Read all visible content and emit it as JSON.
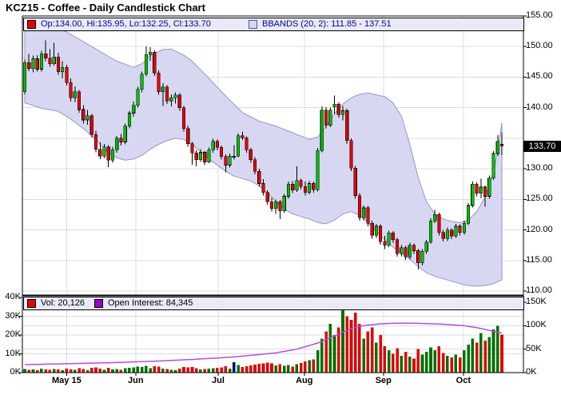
{
  "title": "KCZ15 - Coffee - Daily Candlestick Chart",
  "main_legend": {
    "ohlc_label": "Op:134.00, Hi:135.95, Lo:132.25, Cl:133.70",
    "bbands_label": "BBANDS (20, 2): 111.85 - 137.51"
  },
  "volume_legend": {
    "vol_label": "Vol: 20,126",
    "oi_label": "Open Interest: 84,345"
  },
  "last_price_label": "133.70",
  "colors": {
    "candle_up": "#00C000",
    "candle_down": "#E60000",
    "candle_flat": "#000080",
    "candle_outline": "#000000",
    "bb_fill": "#D7D7F2",
    "bb_edge": "#9595CC",
    "vol_up": "#007000",
    "vol_down": "#E00000",
    "vol_flat": "#000080",
    "oi_line": "#B24FE0",
    "legend_bg": "#E9E9F8",
    "legend_text_main": "#000099",
    "grid": "#DCDCDC",
    "badge_bg": "#000000",
    "badge_fg": "#FFFFFF",
    "oi_swatch": "#9900CC",
    "vol_swatch": "#E60000",
    "ohlc_swatch": "#E60000"
  },
  "chart_data": {
    "type": "candlestick",
    "title": "KCZ15 - Coffee - Daily Candlestick Chart",
    "price_axis": {
      "side": "right",
      "min": 109.3,
      "max": 155.0,
      "tick_labels": [
        {
          "label": "155.00",
          "value": 155
        },
        {
          "label": "150.00",
          "value": 150
        },
        {
          "label": "145.00",
          "value": 145
        },
        {
          "label": "140.00",
          "value": 140
        },
        {
          "label": "130.00",
          "value": 130
        },
        {
          "label": "125.00",
          "value": 125
        },
        {
          "label": "120.00",
          "value": 120
        },
        {
          "label": "115.00",
          "value": 115
        },
        {
          "label": "110.00",
          "value": 110
        }
      ],
      "gridline_values": [
        150,
        145,
        140,
        135,
        130,
        125,
        120,
        115,
        110
      ],
      "last_price": 133.7
    },
    "volume_axis_left": {
      "tick_labels": [
        {
          "label": "40K",
          "value": 40
        },
        {
          "label": "30K",
          "value": 30
        },
        {
          "label": "20K",
          "value": 20
        },
        {
          "label": "10K",
          "value": 10
        },
        {
          "label": "0K",
          "value": 0
        }
      ]
    },
    "volume_axis_right": {
      "tick_labels": [
        {
          "label": "150K",
          "value": 150
        },
        {
          "label": "100K",
          "value": 100
        },
        {
          "label": "50K",
          "value": 50
        },
        {
          "label": "0K",
          "value": 0
        }
      ]
    },
    "month_ticks": [
      {
        "label": "May 15",
        "index": 10
      },
      {
        "label": "Jun",
        "index": 26.5
      },
      {
        "label": "Jul",
        "index": 46.2
      },
      {
        "label": "Aug",
        "index": 66.8
      },
      {
        "label": "Sep",
        "index": 85.7
      },
      {
        "label": "Oct",
        "index": 104.8
      }
    ],
    "candles_format": [
      "open",
      "high",
      "low",
      "close",
      "volume_thousands"
    ],
    "candles": [
      [
        142.6,
        147.9,
        142.2,
        147.4,
        2.0
      ],
      [
        147.4,
        148.8,
        146.0,
        146.4,
        1.5
      ],
      [
        146.4,
        148.5,
        145.8,
        148.0,
        1.8
      ],
      [
        148.0,
        148.6,
        145.9,
        146.3,
        1.2
      ],
      [
        146.3,
        149.3,
        145.9,
        148.8,
        2.2
      ],
      [
        148.8,
        151.0,
        147.6,
        148.1,
        1.6
      ],
      [
        148.1,
        149.6,
        146.7,
        147.2,
        1.4
      ],
      [
        147.2,
        150.6,
        146.9,
        148.3,
        2.0
      ],
      [
        148.3,
        149.0,
        145.4,
        145.9,
        1.7
      ],
      [
        145.9,
        147.6,
        144.8,
        146.6,
        1.3
      ],
      [
        146.6,
        147.0,
        143.6,
        144.1,
        2.1
      ],
      [
        144.1,
        144.8,
        141.0,
        141.6,
        1.8
      ],
      [
        141.6,
        143.5,
        140.9,
        142.6,
        1.5
      ],
      [
        142.6,
        142.9,
        139.2,
        139.7,
        2.4
      ],
      [
        139.7,
        140.4,
        137.4,
        138.0,
        2.0
      ],
      [
        138.0,
        139.6,
        137.2,
        138.7,
        1.2
      ],
      [
        138.7,
        139.0,
        135.1,
        135.6,
        2.6
      ],
      [
        135.6,
        136.2,
        132.7,
        133.2,
        2.8
      ],
      [
        133.2,
        134.3,
        131.6,
        132.1,
        2.2
      ],
      [
        132.1,
        134.1,
        131.8,
        133.6,
        1.5
      ],
      [
        133.6,
        133.9,
        130.3,
        131.4,
        2.5
      ],
      [
        131.4,
        133.6,
        131.0,
        133.1,
        1.6
      ],
      [
        133.1,
        135.4,
        132.6,
        135.0,
        1.9
      ],
      [
        135.0,
        135.7,
        133.8,
        134.4,
        1.4
      ],
      [
        134.4,
        137.4,
        134.0,
        137.0,
        2.3
      ],
      [
        137.0,
        139.5,
        136.6,
        139.1,
        2.6
      ],
      [
        139.1,
        141.0,
        138.5,
        140.4,
        2.8
      ],
      [
        140.4,
        143.4,
        140.0,
        143.0,
        3.2
      ],
      [
        143.0,
        145.9,
        142.5,
        145.5,
        3.0
      ],
      [
        145.5,
        150.0,
        145.1,
        148.7,
        3.6
      ],
      [
        148.7,
        149.9,
        147.7,
        149.1,
        2.4
      ],
      [
        149.1,
        149.4,
        145.2,
        145.7,
        3.4
      ],
      [
        145.7,
        146.1,
        142.1,
        142.6,
        3.1
      ],
      [
        142.6,
        144.0,
        140.3,
        143.4,
        2.2
      ],
      [
        143.4,
        143.7,
        140.6,
        141.1,
        2.0
      ],
      [
        141.1,
        142.2,
        140.2,
        141.6,
        1.5
      ],
      [
        141.6,
        142.5,
        140.7,
        142.1,
        1.3
      ],
      [
        142.1,
        142.4,
        139.5,
        140.0,
        2.1
      ],
      [
        140.0,
        140.3,
        136.1,
        136.6,
        2.9
      ],
      [
        136.6,
        137.1,
        133.6,
        134.1,
        2.7
      ],
      [
        134.1,
        134.4,
        130.7,
        132.6,
        3.0
      ],
      [
        132.6,
        133.0,
        130.4,
        131.5,
        2.3
      ],
      [
        131.5,
        133.2,
        131.1,
        132.7,
        1.7
      ],
      [
        132.7,
        132.9,
        130.6,
        131.1,
        1.9
      ],
      [
        131.1,
        133.5,
        130.9,
        133.1,
        2.1
      ],
      [
        133.1,
        134.9,
        132.6,
        134.5,
        2.4
      ],
      [
        134.5,
        134.8,
        133.0,
        133.5,
        2.6
      ],
      [
        133.5,
        133.8,
        131.5,
        132.0,
        2.8
      ],
      [
        132.0,
        132.4,
        129.4,
        130.6,
        3.5
      ],
      [
        130.6,
        132.5,
        130.2,
        132.1,
        2.2
      ],
      [
        132.1,
        133.9,
        131.5,
        132.1,
        5.5
      ],
      [
        132.1,
        135.8,
        131.9,
        135.4,
        4.0
      ],
      [
        135.4,
        136.1,
        134.7,
        135.1,
        3.0
      ],
      [
        135.1,
        135.3,
        132.6,
        133.1,
        3.3
      ],
      [
        133.1,
        133.4,
        131.0,
        131.5,
        3.8
      ],
      [
        131.5,
        131.9,
        129.1,
        129.6,
        4.2
      ],
      [
        129.6,
        130.0,
        127.1,
        127.6,
        4.6
      ],
      [
        127.6,
        128.3,
        125.6,
        126.1,
        5.0
      ],
      [
        126.1,
        126.5,
        124.1,
        124.6,
        5.4
      ],
      [
        124.6,
        125.3,
        123.0,
        123.5,
        4.8
      ],
      [
        123.5,
        125.0,
        122.6,
        124.6,
        3.9
      ],
      [
        124.6,
        124.9,
        121.8,
        123.1,
        4.4
      ],
      [
        123.1,
        125.9,
        122.8,
        125.5,
        3.6
      ],
      [
        125.5,
        127.9,
        125.1,
        127.5,
        4.1
      ],
      [
        127.5,
        128.0,
        126.0,
        126.5,
        3.2
      ],
      [
        126.5,
        130.4,
        126.2,
        128.1,
        4.5
      ],
      [
        128.1,
        128.4,
        126.6,
        127.1,
        5.2
      ],
      [
        127.1,
        127.9,
        125.6,
        126.1,
        6.0
      ],
      [
        126.1,
        128.0,
        125.8,
        127.6,
        6.5
      ],
      [
        127.6,
        127.9,
        126.1,
        126.6,
        7.0
      ],
      [
        126.6,
        133.4,
        126.3,
        133.0,
        12.0
      ],
      [
        133.0,
        140.2,
        132.7,
        139.6,
        18.0
      ],
      [
        139.6,
        140.1,
        136.6,
        137.1,
        22.0
      ],
      [
        137.1,
        140.0,
        136.8,
        139.6,
        26.0
      ],
      [
        140.1,
        142.0,
        138.9,
        140.6,
        20.0
      ],
      [
        140.6,
        140.9,
        138.4,
        138.9,
        24.0
      ],
      [
        138.9,
        140.3,
        137.9,
        139.5,
        35.0
      ],
      [
        139.5,
        139.8,
        134.1,
        134.6,
        30.0
      ],
      [
        134.6,
        135.0,
        129.6,
        130.1,
        28.0
      ],
      [
        130.1,
        130.5,
        125.1,
        125.6,
        32.0
      ],
      [
        125.6,
        126.0,
        121.5,
        122.0,
        26.0
      ],
      [
        122.0,
        124.0,
        121.6,
        123.6,
        18.0
      ],
      [
        123.6,
        123.9,
        120.6,
        121.1,
        22.0
      ],
      [
        121.1,
        121.5,
        118.6,
        119.1,
        24.0
      ],
      [
        119.1,
        121.0,
        118.7,
        120.6,
        16.0
      ],
      [
        120.6,
        120.9,
        117.6,
        118.1,
        20.0
      ],
      [
        118.1,
        119.0,
        116.9,
        117.5,
        14.0
      ],
      [
        117.5,
        119.9,
        117.2,
        119.5,
        12.0
      ],
      [
        119.5,
        119.8,
        117.9,
        118.4,
        10.0
      ],
      [
        118.4,
        118.7,
        115.6,
        116.1,
        13.0
      ],
      [
        116.1,
        117.5,
        115.7,
        117.1,
        9.0
      ],
      [
        117.1,
        117.4,
        115.1,
        115.6,
        11.0
      ],
      [
        115.6,
        117.9,
        115.2,
        117.5,
        8.5
      ],
      [
        117.5,
        117.8,
        116.1,
        116.6,
        7.5
      ],
      [
        116.6,
        116.9,
        113.5,
        114.6,
        12.5
      ],
      [
        114.6,
        116.9,
        114.2,
        116.5,
        9.5
      ],
      [
        116.5,
        118.4,
        116.1,
        118.0,
        11.0
      ],
      [
        118.0,
        121.9,
        117.7,
        121.5,
        13.5
      ],
      [
        121.5,
        123.3,
        121.1,
        122.5,
        12.0
      ],
      [
        122.5,
        122.8,
        119.1,
        119.6,
        14.0
      ],
      [
        119.6,
        120.0,
        118.1,
        118.6,
        10.5
      ],
      [
        118.6,
        120.4,
        118.2,
        120.0,
        9.0
      ],
      [
        120.0,
        120.3,
        118.5,
        119.0,
        8.0
      ],
      [
        119.0,
        121.0,
        118.7,
        120.6,
        9.5
      ],
      [
        120.6,
        120.9,
        119.1,
        119.6,
        8.0
      ],
      [
        119.6,
        121.5,
        119.2,
        121.1,
        12.0
      ],
      [
        121.1,
        124.4,
        120.8,
        124.0,
        15.0
      ],
      [
        124.0,
        127.9,
        123.7,
        127.5,
        18.0
      ],
      [
        127.5,
        127.8,
        125.5,
        126.0,
        16.0
      ],
      [
        126.0,
        128.4,
        125.2,
        127.0,
        21.0
      ],
      [
        127.0,
        127.3,
        123.8,
        125.5,
        17.0
      ],
      [
        125.5,
        128.9,
        125.1,
        128.5,
        19.0
      ],
      [
        128.5,
        132.9,
        128.2,
        132.5,
        23.0
      ],
      [
        132.5,
        135.5,
        132.1,
        134.5,
        25.0
      ],
      [
        134.0,
        135.95,
        132.25,
        133.7,
        20.126
      ]
    ],
    "bbands": {
      "period": 20,
      "stdev": 2,
      "current_lower": 111.85,
      "current_upper": 137.51,
      "upper_anchors": [
        [
          0,
          152.5
        ],
        [
          4,
          153.2
        ],
        [
          6,
          153.3
        ],
        [
          10,
          152.4
        ],
        [
          14,
          150.8
        ],
        [
          18,
          149.2
        ],
        [
          22,
          147.6
        ],
        [
          26,
          146.6
        ],
        [
          28,
          147.2
        ],
        [
          30,
          148.6
        ],
        [
          33,
          149.5
        ],
        [
          35,
          149.6
        ],
        [
          38,
          148.6
        ],
        [
          40,
          147.6
        ],
        [
          44,
          144.8
        ],
        [
          48,
          141.9
        ],
        [
          52,
          139.2
        ],
        [
          56,
          137.8
        ],
        [
          60,
          137.0
        ],
        [
          64,
          135.9
        ],
        [
          68,
          134.8
        ],
        [
          70,
          135.2
        ],
        [
          72,
          137.0
        ],
        [
          74,
          139.0
        ],
        [
          76,
          140.6
        ],
        [
          78,
          141.6
        ],
        [
          80,
          142.2
        ],
        [
          82,
          142.4
        ],
        [
          86,
          141.8
        ],
        [
          88,
          140.8
        ],
        [
          90,
          138.6
        ],
        [
          92,
          134.0
        ],
        [
          94,
          128.6
        ],
        [
          96,
          124.6
        ],
        [
          98,
          122.6
        ],
        [
          100,
          121.8
        ],
        [
          102,
          121.4
        ],
        [
          104,
          121.2
        ],
        [
          106,
          121.6
        ],
        [
          108,
          123.0
        ],
        [
          110,
          125.4
        ],
        [
          112,
          129.4
        ],
        [
          113,
          133.0
        ],
        [
          114,
          137.51
        ]
      ],
      "lower_anchors": [
        [
          0,
          140.8
        ],
        [
          4,
          139.9
        ],
        [
          8,
          139.4
        ],
        [
          10,
          138.6
        ],
        [
          14,
          136.6
        ],
        [
          16,
          135.4
        ],
        [
          18,
          134.0
        ],
        [
          20,
          132.6
        ],
        [
          22,
          131.8
        ],
        [
          24,
          131.4
        ],
        [
          26,
          131.6
        ],
        [
          28,
          132.2
        ],
        [
          30,
          133.2
        ],
        [
          32,
          134.0
        ],
        [
          34,
          134.6
        ],
        [
          36,
          135.0
        ],
        [
          38,
          134.8
        ],
        [
          40,
          134.0
        ],
        [
          42,
          132.8
        ],
        [
          44,
          131.6
        ],
        [
          46,
          130.6
        ],
        [
          48,
          129.6
        ],
        [
          50,
          128.8
        ],
        [
          52,
          128.4
        ],
        [
          54,
          128.0
        ],
        [
          56,
          127.2
        ],
        [
          58,
          126.0
        ],
        [
          60,
          124.6
        ],
        [
          62,
          123.4
        ],
        [
          64,
          122.6
        ],
        [
          66,
          122.2
        ],
        [
          68,
          121.8
        ],
        [
          70,
          121.2
        ],
        [
          72,
          121.0
        ],
        [
          74,
          121.6
        ],
        [
          76,
          122.6
        ],
        [
          78,
          123.0
        ],
        [
          80,
          122.4
        ],
        [
          82,
          121.2
        ],
        [
          84,
          119.8
        ],
        [
          86,
          118.4
        ],
        [
          88,
          117.2
        ],
        [
          90,
          116.2
        ],
        [
          92,
          115.2
        ],
        [
          94,
          114.0
        ],
        [
          96,
          113.0
        ],
        [
          98,
          112.4
        ],
        [
          100,
          112.0
        ],
        [
          102,
          111.6
        ],
        [
          104,
          111.2
        ],
        [
          106,
          110.9
        ],
        [
          108,
          110.8
        ],
        [
          110,
          110.9
        ],
        [
          112,
          111.2
        ],
        [
          114,
          111.85
        ]
      ]
    },
    "open_interest": {
      "current": 84345,
      "anchors_thousands": [
        [
          0,
          17
        ],
        [
          10,
          19
        ],
        [
          20,
          21
        ],
        [
          30,
          24
        ],
        [
          40,
          28
        ],
        [
          50,
          33.4
        ],
        [
          60,
          42
        ],
        [
          65,
          50
        ],
        [
          70,
          63
        ],
        [
          75,
          82
        ],
        [
          78,
          93.5
        ],
        [
          80,
          98.5
        ],
        [
          82,
          101.5
        ],
        [
          85,
          104
        ],
        [
          88,
          105.2
        ],
        [
          91,
          105.5
        ],
        [
          95,
          104.8
        ],
        [
          100,
          103.2
        ],
        [
          105,
          100
        ],
        [
          108,
          95.8
        ],
        [
          110,
          92
        ],
        [
          112,
          88
        ],
        [
          114,
          84.345
        ]
      ]
    },
    "last_volume": 20126
  }
}
